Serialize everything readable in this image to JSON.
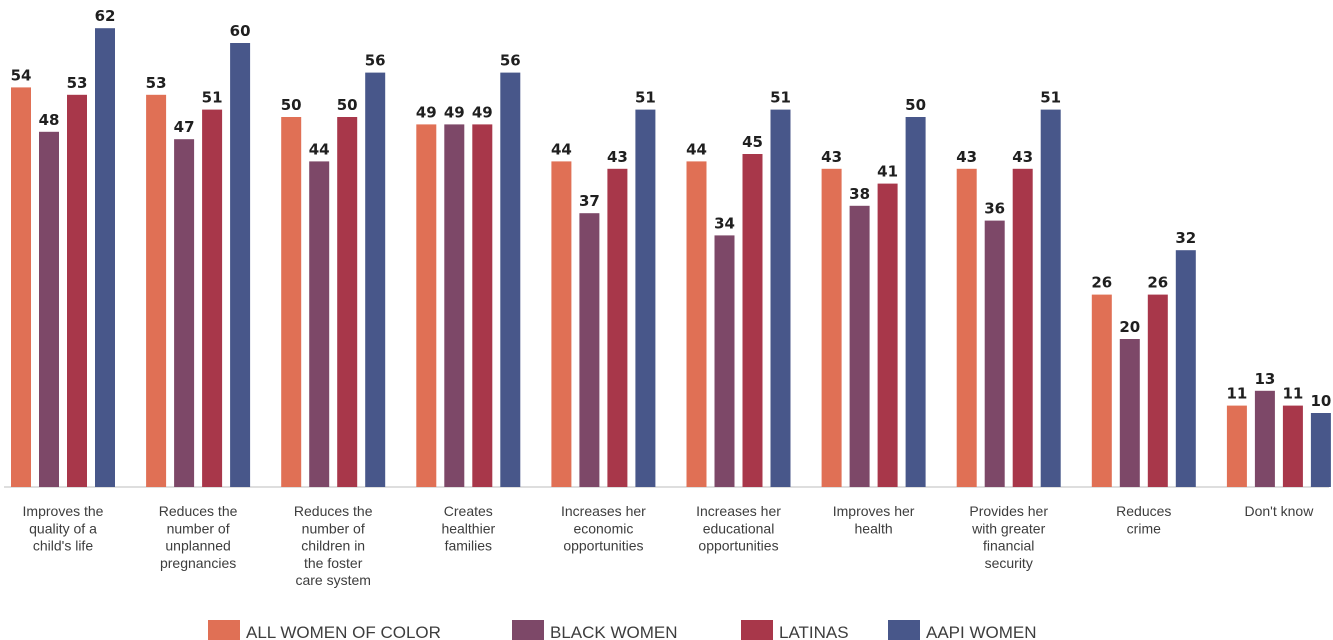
{
  "chart_data": {
    "type": "bar",
    "title": "",
    "xlabel": "",
    "ylabel": "",
    "ylim": [
      0,
      64
    ],
    "grid": false,
    "legend_position": "bottom",
    "categories": [
      [
        "Improves the",
        "quality of a",
        "child's life"
      ],
      [
        "Reduces the",
        "number of",
        "unplanned",
        "pregnancies"
      ],
      [
        "Reduces the",
        "number of",
        "children in",
        "the foster",
        "care system"
      ],
      [
        "Creates",
        "healthier",
        "families"
      ],
      [
        "Increases her",
        "economic",
        "opportunities"
      ],
      [
        "Increases her",
        "educational",
        "opportunities"
      ],
      [
        "Improves her",
        "health"
      ],
      [
        "Provides her",
        "with greater",
        "financial",
        "security"
      ],
      [
        "Reduces",
        "crime"
      ],
      [
        "Don't know"
      ]
    ],
    "series": [
      {
        "name": "ALL WOMEN OF COLOR",
        "color": "#E07055",
        "values": [
          54,
          53,
          50,
          49,
          44,
          44,
          43,
          43,
          26,
          11
        ]
      },
      {
        "name": "BLACK WOMEN",
        "color": "#7D4868",
        "values": [
          48,
          47,
          44,
          49,
          37,
          34,
          38,
          36,
          20,
          13
        ]
      },
      {
        "name": "LATINAS",
        "color": "#A8374A",
        "values": [
          53,
          51,
          50,
          49,
          43,
          45,
          41,
          43,
          26,
          11
        ]
      },
      {
        "name": "AAPI WOMEN",
        "color": "#48578A",
        "values": [
          62,
          60,
          56,
          56,
          51,
          51,
          50,
          51,
          32,
          10
        ]
      }
    ]
  }
}
